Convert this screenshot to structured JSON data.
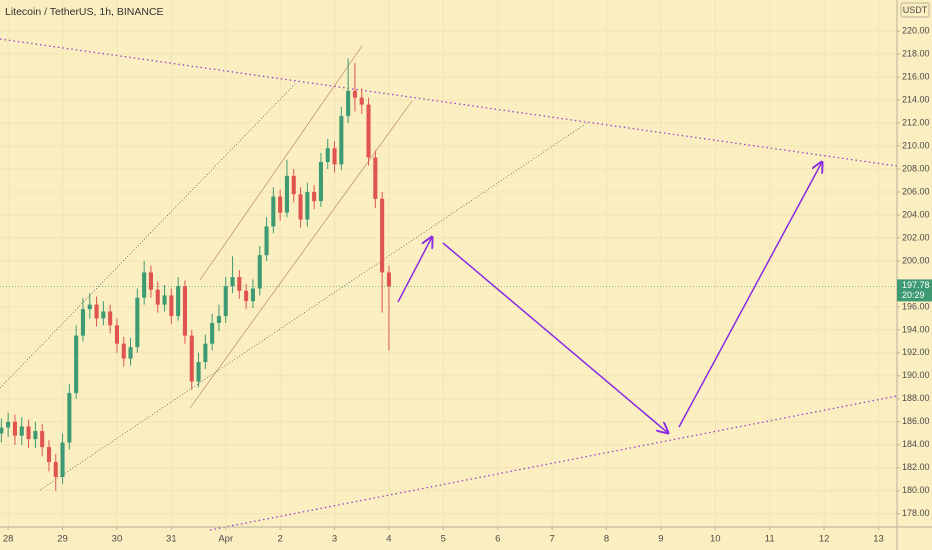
{
  "chart_data": {
    "type": "candlestick",
    "title": "Litecoin / TetherUS, 1h, BINANCE",
    "currency": "USDT",
    "up_color": "#3d9a72",
    "down_color": "#e0544f",
    "grid": true,
    "xlim": [
      -0.15,
      16.34
    ],
    "ylim": [
      176.85,
      222.7
    ],
    "xticks": [
      {
        "value": 0,
        "label": "28"
      },
      {
        "value": 1,
        "label": "29"
      },
      {
        "value": 2,
        "label": "30"
      },
      {
        "value": 3,
        "label": "31"
      },
      {
        "value": 4,
        "label": "Apr"
      },
      {
        "value": 5,
        "label": "2"
      },
      {
        "value": 6,
        "label": "3"
      },
      {
        "value": 7,
        "label": "4"
      },
      {
        "value": 8,
        "label": "5"
      },
      {
        "value": 9,
        "label": "6"
      },
      {
        "value": 10,
        "label": "7"
      },
      {
        "value": 11,
        "label": "8"
      },
      {
        "value": 12,
        "label": "9"
      },
      {
        "value": 13,
        "label": "10"
      },
      {
        "value": 14,
        "label": "11"
      },
      {
        "value": 15,
        "label": "12"
      },
      {
        "value": 16,
        "label": "13"
      }
    ],
    "yticks": [
      {
        "value": 178,
        "label": "178.00"
      },
      {
        "value": 180,
        "label": "180.00"
      },
      {
        "value": 182,
        "label": "182.00"
      },
      {
        "value": 184,
        "label": "184.00"
      },
      {
        "value": 186,
        "label": "186.00"
      },
      {
        "value": 188,
        "label": "188.00"
      },
      {
        "value": 190,
        "label": "190.00"
      },
      {
        "value": 192,
        "label": "192.00"
      },
      {
        "value": 194,
        "label": "194.00"
      },
      {
        "value": 196,
        "label": "196.00"
      },
      {
        "value": 200,
        "label": "200.00"
      },
      {
        "value": 202,
        "label": "202.00"
      },
      {
        "value": 204,
        "label": "204.00"
      },
      {
        "value": 206,
        "label": "206.00"
      },
      {
        "value": 208,
        "label": "208.00"
      },
      {
        "value": 210,
        "label": "210.00"
      },
      {
        "value": 212,
        "label": "212.00"
      },
      {
        "value": 214,
        "label": "214.00"
      },
      {
        "value": 216,
        "label": "216.00"
      },
      {
        "value": 218,
        "label": "218.00"
      },
      {
        "value": 220,
        "label": "220.00"
      }
    ],
    "last_price": 197.78,
    "countdown": "20:29",
    "x": [
      -0.125,
      0,
      0.125,
      0.25,
      0.375,
      0.5,
      0.625,
      0.75,
      0.875,
      1,
      1.125,
      1.25,
      1.375,
      1.5,
      1.625,
      1.75,
      1.875,
      2,
      2.125,
      2.25,
      2.375,
      2.5,
      2.625,
      2.75,
      2.875,
      3,
      3.125,
      3.25,
      3.375,
      3.5,
      3.625,
      3.75,
      3.875,
      4,
      4.125,
      4.25,
      4.375,
      4.5,
      4.625,
      4.75,
      4.875,
      5,
      5.125,
      5.25,
      5.375,
      5.5,
      5.625,
      5.75,
      5.875,
      6,
      6.125,
      6.25,
      6.375,
      6.5,
      6.625,
      6.75,
      6.875,
      7
    ],
    "open": [
      185.0,
      185.5,
      186.0,
      184.8,
      185.6,
      184.5,
      185.2,
      183.8,
      182.5,
      181.2,
      184.2,
      188.5,
      193.5,
      195.8,
      196.2,
      195.0,
      195.6,
      194.4,
      192.8,
      191.5,
      192.5,
      196.8,
      199.0,
      197.5,
      196.2,
      197.0,
      195.2,
      197.8,
      193.5,
      189.5,
      191.2,
      192.8,
      194.6,
      195.2,
      197.8,
      198.6,
      197.4,
      196.5,
      197.6,
      200.5,
      203.0,
      205.6,
      204.2,
      207.4,
      205.8,
      203.6,
      206.0,
      205.2,
      208.6,
      209.8,
      208.4,
      212.6,
      214.8,
      214.2,
      213.6,
      209.0,
      205.4,
      199.0
    ],
    "high": [
      186.3,
      186.8,
      186.6,
      186.4,
      186.2,
      186.0,
      185.8,
      184.4,
      183.2,
      185.0,
      189.3,
      194.4,
      196.8,
      197.2,
      196.9,
      196.5,
      196.2,
      195.0,
      193.4,
      193.3,
      197.6,
      200.0,
      199.6,
      198.2,
      197.9,
      197.6,
      198.6,
      198.3,
      194.0,
      192.0,
      193.6,
      195.4,
      196.2,
      198.6,
      200.4,
      199.2,
      198.0,
      198.4,
      201.3,
      203.8,
      206.4,
      206.2,
      208.8,
      208.0,
      206.4,
      206.8,
      206.6,
      209.4,
      210.6,
      210.4,
      213.4,
      217.6,
      217.2,
      215.0,
      214.2,
      209.6,
      206.0,
      199.6
    ],
    "low": [
      184.2,
      184.7,
      184.0,
      184.0,
      183.7,
      183.7,
      183.0,
      181.7,
      180.0,
      180.6,
      183.6,
      188.0,
      193.0,
      195.0,
      194.3,
      194.4,
      193.7,
      192.0,
      190.8,
      190.9,
      192.0,
      196.2,
      196.8,
      195.5,
      195.6,
      194.5,
      194.8,
      192.8,
      188.8,
      189.0,
      190.6,
      192.2,
      193.9,
      194.6,
      197.2,
      196.7,
      195.8,
      195.9,
      197.0,
      200.0,
      202.4,
      203.5,
      203.8,
      205.1,
      202.9,
      203.0,
      204.5,
      204.7,
      208.0,
      207.7,
      207.9,
      212.0,
      213.0,
      212.8,
      208.3,
      204.6,
      195.5,
      192.2
    ],
    "close": [
      185.5,
      186.0,
      184.8,
      185.6,
      184.5,
      185.2,
      183.8,
      182.5,
      181.2,
      184.2,
      188.5,
      193.5,
      195.8,
      196.2,
      195.0,
      195.6,
      194.4,
      192.8,
      191.5,
      192.5,
      196.8,
      199.0,
      197.5,
      196.2,
      197.0,
      195.2,
      197.8,
      193.5,
      189.5,
      191.2,
      192.8,
      194.6,
      195.2,
      197.8,
      198.6,
      197.4,
      196.5,
      197.6,
      200.5,
      203.0,
      205.6,
      204.2,
      207.4,
      205.8,
      203.6,
      206.0,
      205.2,
      208.6,
      209.8,
      208.4,
      212.6,
      214.8,
      214.2,
      213.6,
      209.0,
      205.4,
      199.0,
      197.78
    ]
  }
}
